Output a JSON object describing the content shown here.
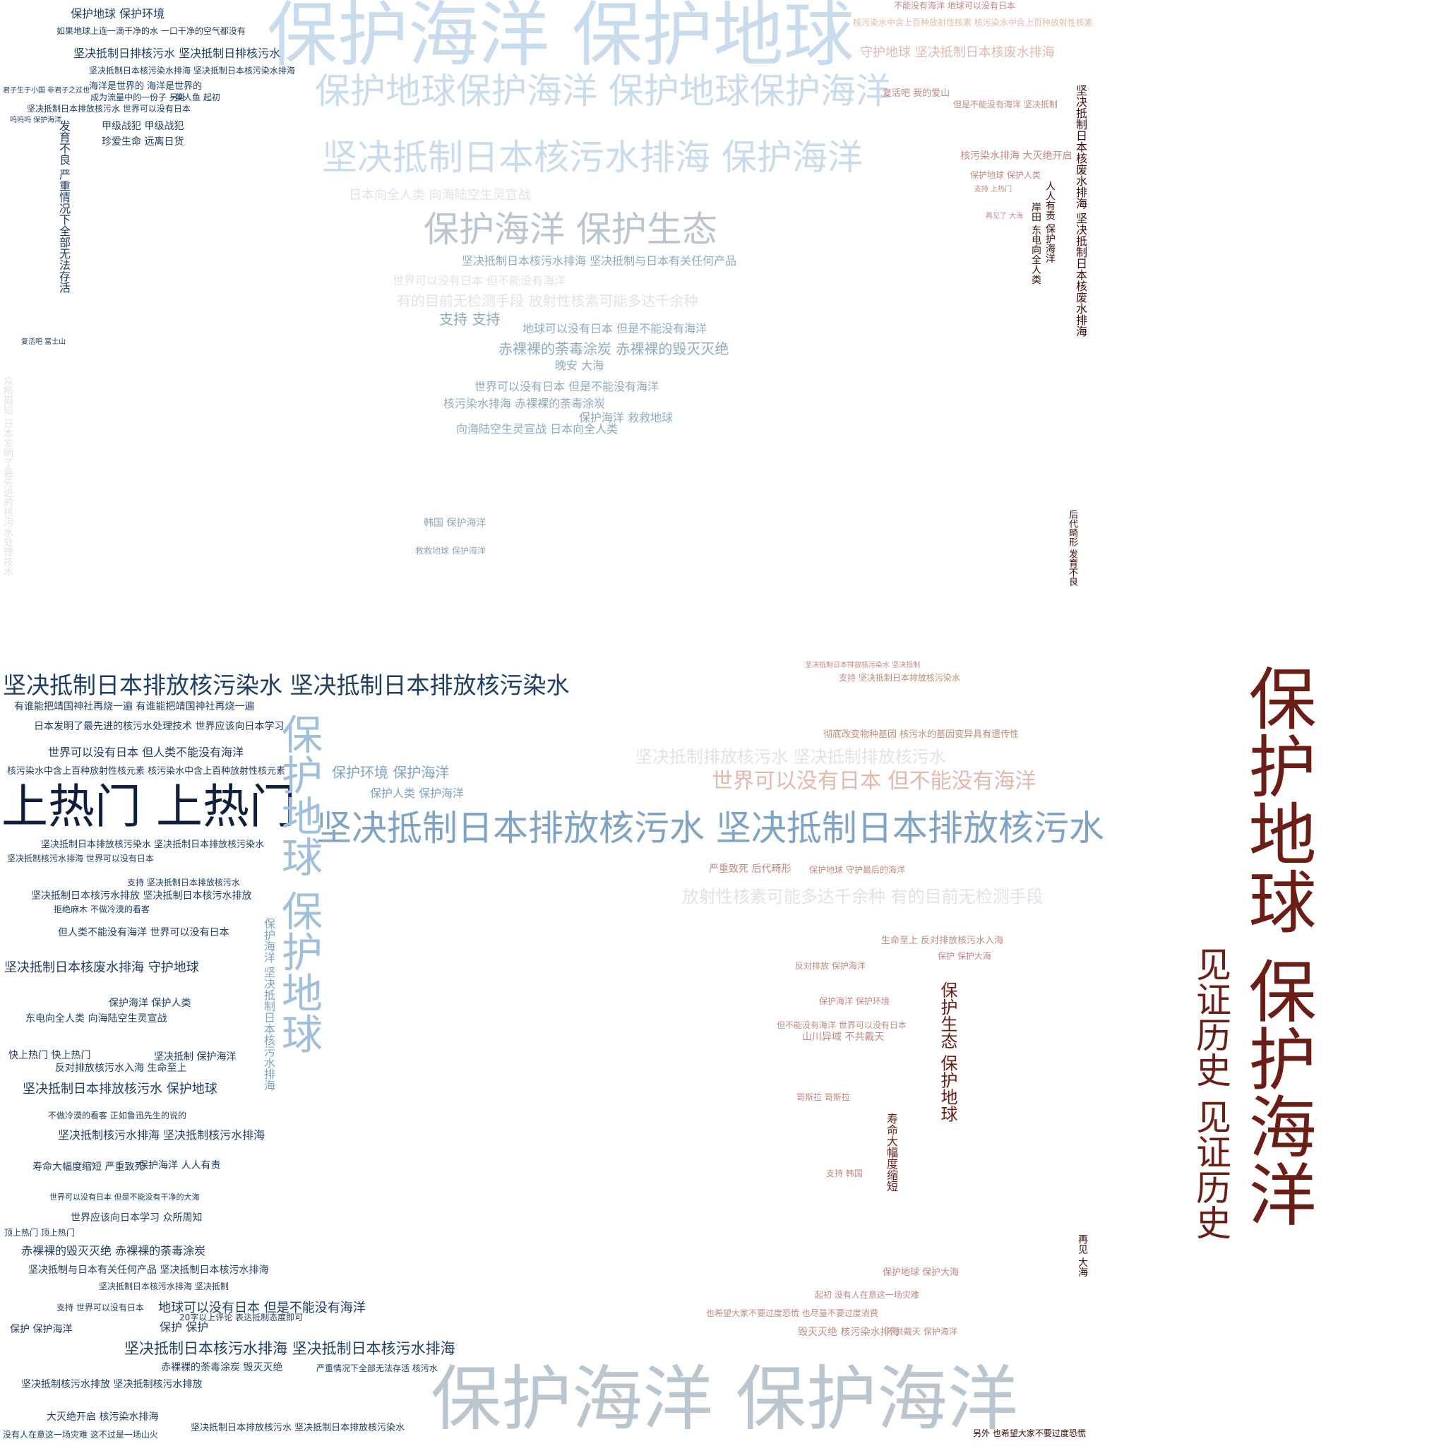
{
  "words": [
    {
      "text": "保护海洋 保护地球",
      "cls": "c1"
    },
    {
      "text": "保护地球保护海洋 保护地球保护海洋",
      "cls": "c1"
    },
    {
      "text": "坚决抵制日本核污水排海 保护海洋",
      "cls": "c1"
    },
    {
      "text": "保护海洋 保护生态",
      "cls": "c10"
    },
    {
      "text": "坚决抵制日本排放核污染水 坚决抵制日本排放核污染水",
      "cls": "c4"
    },
    {
      "text": "上热门 上热门",
      "cls": "c5"
    },
    {
      "text": "坚决抵制日本排放核污水 坚决抵制日本排放核污水",
      "cls": "c3"
    },
    {
      "text": "保护地球 保护地球",
      "cls": "c2"
    },
    {
      "text": "保护地球 保护海洋",
      "cls": "c8"
    },
    {
      "text": "见证历史 见证历史",
      "cls": "c8"
    },
    {
      "text": "保护海洋 保护海洋",
      "cls": "c10"
    },
    {
      "text": "世界可以没有日本 但不能没有海洋",
      "cls": "c6"
    },
    {
      "text": "坚决抵制排放核污水 坚决抵制排放核污水",
      "cls": "c11"
    },
    {
      "text": "放射性核素可能多达千余种 有的目前无检测手段",
      "cls": "c11"
    },
    {
      "text": "有的目前无检测手段 放射性核素可能多达千余种",
      "cls": "c11"
    },
    {
      "text": "赤裸裸的荼毒涂炭 赤裸裸的毁灭灭绝",
      "cls": "c12"
    },
    {
      "text": "坚决抵制日本核污水排海 坚决抵制与日本有关任何产品",
      "cls": "c12"
    },
    {
      "text": "日本向全人类 向海陆空生灵宣战",
      "cls": "c11"
    },
    {
      "text": "世界可以没有日本 但不能没有海洋",
      "cls": "c11"
    },
    {
      "text": "支持 支持",
      "cls": "c12"
    },
    {
      "text": "地球可以没有日本 但是不能没有海洋",
      "cls": "c12"
    },
    {
      "text": "晚安 大海",
      "cls": "c12"
    },
    {
      "text": "世界可以没有日本 但是不能没有海洋",
      "cls": "c12"
    },
    {
      "text": "核污染水排海 赤裸裸的荼毒涂炭",
      "cls": "c12"
    },
    {
      "text": "保护海洋 救救地球",
      "cls": "c12"
    },
    {
      "text": "向海陆空生灵宣战 日本向全人类",
      "cls": "c12"
    },
    {
      "text": "韩国 保护海洋",
      "cls": "c12"
    },
    {
      "text": "救救地球 保护海洋",
      "cls": "c12"
    },
    {
      "text": "保护环境 保护海洋",
      "cls": "c3"
    },
    {
      "text": "保护人类 保护海洋",
      "cls": "c3"
    },
    {
      "text": "保护地球 保护环境",
      "cls": "c4"
    },
    {
      "text": "如果地球上连一滴干净的水 一口干净的空气都没有",
      "cls": "c4"
    },
    {
      "text": "坚决抵制日排核污水 坚决抵制日排核污水",
      "cls": "c4"
    },
    {
      "text": "坚决抵制日本核污染水排海 坚决抵制日本核污染水排海",
      "cls": "c4"
    },
    {
      "text": "海洋是世界的 海洋是世界的",
      "cls": "c4"
    },
    {
      "text": "成为流量中的一份子 另外",
      "cls": "c4"
    },
    {
      "text": "美人鱼 起初",
      "cls": "c4"
    },
    {
      "text": "坚决抵制日本排放核污水 世界可以没有日本",
      "cls": "c4"
    },
    {
      "text": "甲级战犯 甲级战犯",
      "cls": "c4"
    },
    {
      "text": "珍爱生命 远离日货",
      "cls": "c4"
    },
    {
      "text": "有谁能把靖国神社再烧一遍 有谁能把靖国神社再烧一遍",
      "cls": "c4"
    },
    {
      "text": "日本发明了最先进的核污水处理技术 世界应该向日本学习",
      "cls": "c4"
    },
    {
      "text": "世界可以没有日本 但人类不能没有海洋",
      "cls": "c4"
    },
    {
      "text": "核污染水中含上百种放射性核元素 核污染水中含上百种放射性核元素",
      "cls": "c4"
    },
    {
      "text": "坚决抵制日本排放核污染水 坚决抵制日本排放核污染水",
      "cls": "c4"
    },
    {
      "text": "坚决抵制核污水排海 世界可以没有日本",
      "cls": "c4"
    },
    {
      "text": "支持 坚决抵制日本排放核污水",
      "cls": "c4"
    },
    {
      "text": "坚决抵制日本核污水排放 坚决抵制日本核污水排放",
      "cls": "c4"
    },
    {
      "text": "拒绝麻木 不做冷漠的看客",
      "cls": "c4"
    },
    {
      "text": "但人类不能没有海洋 世界可以没有日本",
      "cls": "c4"
    },
    {
      "text": "坚决抵制日本核废水排海 守护地球",
      "cls": "c4"
    },
    {
      "text": "保护海洋 保护人类",
      "cls": "c4"
    },
    {
      "text": "东电向全人类 向海陆空生灵宣战",
      "cls": "c4"
    },
    {
      "text": "快上热门 快上热门",
      "cls": "c4"
    },
    {
      "text": "反对排放核污水入海 生命至上",
      "cls": "c4"
    },
    {
      "text": "坚决抵制 保护海洋",
      "cls": "c4"
    },
    {
      "text": "坚决抵制日本排放核污水 保护地球",
      "cls": "c4"
    },
    {
      "text": "不做冷漠的看客 正如鲁迅先生的说的",
      "cls": "c4"
    },
    {
      "text": "坚决抵制核污水排海 坚决抵制核污水排海",
      "cls": "c4"
    },
    {
      "text": "寿命大幅度缩短 严重致死",
      "cls": "c4"
    },
    {
      "text": "保护海洋 人人有责",
      "cls": "c4"
    },
    {
      "text": "世界可以没有日本 但是不能没有干净的大海",
      "cls": "c4"
    },
    {
      "text": "世界应该向日本学习 众所周知",
      "cls": "c4"
    },
    {
      "text": "赤裸裸的毁灭灭绝 赤裸裸的荼毒涂炭",
      "cls": "c4"
    },
    {
      "text": "坚决抵制与日本有关任何产品 坚决抵制日本核污水排海",
      "cls": "c4"
    },
    {
      "text": "坚决抵制日本核污水排海 坚决抵制",
      "cls": "c4"
    },
    {
      "text": "地球可以没有日本 但是不能没有海洋",
      "cls": "c4"
    },
    {
      "text": "保护 保护",
      "cls": "c4"
    },
    {
      "text": "保护 保护海洋",
      "cls": "c4"
    },
    {
      "text": "坚决抵制日本核污水排海 坚决抵制日本核污水排海",
      "cls": "c4"
    },
    {
      "text": "赤裸裸的荼毒涂炭 毁灭灭绝",
      "cls": "c4"
    },
    {
      "text": "严重情况下全部无法存活 核污水",
      "cls": "c4"
    },
    {
      "text": "坚决抵制核污水排放 坚决抵制核污水排放",
      "cls": "c4"
    },
    {
      "text": "大灭绝开启 核污染水排海",
      "cls": "c4"
    },
    {
      "text": "没有人在意这一场灾难 这不过是一场山火",
      "cls": "c4"
    },
    {
      "text": "坚决抵制日本排放核污水 坚决抵制日本排放核污染水",
      "cls": "c4"
    },
    {
      "text": "支持 世界可以没有日本",
      "cls": "c4"
    },
    {
      "text": "20字以上评论 表达抵制态度即可",
      "cls": "c4"
    },
    {
      "text": "顶上热门 顶上热门",
      "cls": "c4"
    },
    {
      "text": "守护地球 坚决抵制日本核废水排海",
      "cls": "c6"
    },
    {
      "text": "核污染水中含上百种放射性核素 核污染水中含上百种放射性核素",
      "cls": "c6"
    },
    {
      "text": "不能没有海洋 地球可以没有日本",
      "cls": "c7"
    },
    {
      "text": "复活吧 我的爱山",
      "cls": "c7"
    },
    {
      "text": "但是不能没有海洋 坚决抵制",
      "cls": "c7"
    },
    {
      "text": "核污染水排海 大灭绝开启",
      "cls": "c7"
    },
    {
      "text": "保护地球 保护人类",
      "cls": "c7"
    },
    {
      "text": "支持 上热门",
      "cls": "c7"
    },
    {
      "text": "再见了 大海",
      "cls": "c7"
    },
    {
      "text": "坚决抵制日本排放核污染水 坚决抵制",
      "cls": "c7"
    },
    {
      "text": "支持 坚决抵制日本排放核污染水",
      "cls": "c7"
    },
    {
      "text": "彻底改变物种基因 核污水的基因变异具有遗传性",
      "cls": "c7"
    },
    {
      "text": "严重致死 后代畸形",
      "cls": "c7"
    },
    {
      "text": "保护地球 守护最后的海洋",
      "cls": "c7"
    },
    {
      "text": "生命至上 反对排放核污水入海",
      "cls": "c7"
    },
    {
      "text": "保护 保护大海",
      "cls": "c7"
    },
    {
      "text": "反对排放 保护海洋",
      "cls": "c7"
    },
    {
      "text": "保护海洋 保护环境",
      "cls": "c7"
    },
    {
      "text": "山川异域 不共戴天",
      "cls": "c7"
    },
    {
      "text": "但不能没有海洋 世界可以没有日本",
      "cls": "c7"
    },
    {
      "text": "哥斯拉 哥斯拉",
      "cls": "c7"
    },
    {
      "text": "支持 韩国",
      "cls": "c7"
    },
    {
      "text": "保护地球 保护大海",
      "cls": "c7"
    },
    {
      "text": "起初 没有人在意这一场灾难",
      "cls": "c7"
    },
    {
      "text": "也希望大家不要过度恐慌 也尽量不要过度消费",
      "cls": "c7"
    },
    {
      "text": "毁灭灭绝 核污染水排海",
      "cls": "c7"
    },
    {
      "text": "不共戴天 保护海洋",
      "cls": "c7"
    },
    {
      "text": "保护生态 保护地球",
      "cls": "c8"
    },
    {
      "text": "寿命大幅度缩短",
      "cls": "c8"
    },
    {
      "text": "人人有责 保护海洋",
      "cls": "c9"
    },
    {
      "text": "岸田 东电向全人类",
      "cls": "c9"
    },
    {
      "text": "坚决抵制日本核废水排海 坚决抵制日本核废水排海",
      "cls": "c9"
    },
    {
      "text": "后代畸形 发育不良",
      "cls": "c9"
    },
    {
      "text": "再见 大海",
      "cls": "c9"
    },
    {
      "text": "另外 也希望大家不要过度恐慌",
      "cls": "c9"
    },
    {
      "text": "众所周知 日本发明了最先进的核污水处理技术",
      "cls": "c11"
    },
    {
      "text": "发育不良 严重情况下全部无法存活",
      "cls": "c4"
    },
    {
      "text": "保护海洋 坚决抵制日本核污水排海",
      "cls": "c3"
    },
    {
      "text": "君子生于小国 非君子之过也",
      "cls": "c4"
    },
    {
      "text": "复活吧 富士山",
      "cls": "c4"
    },
    {
      "text": "呜呜呜 保护海洋",
      "cls": "c4"
    }
  ]
}
